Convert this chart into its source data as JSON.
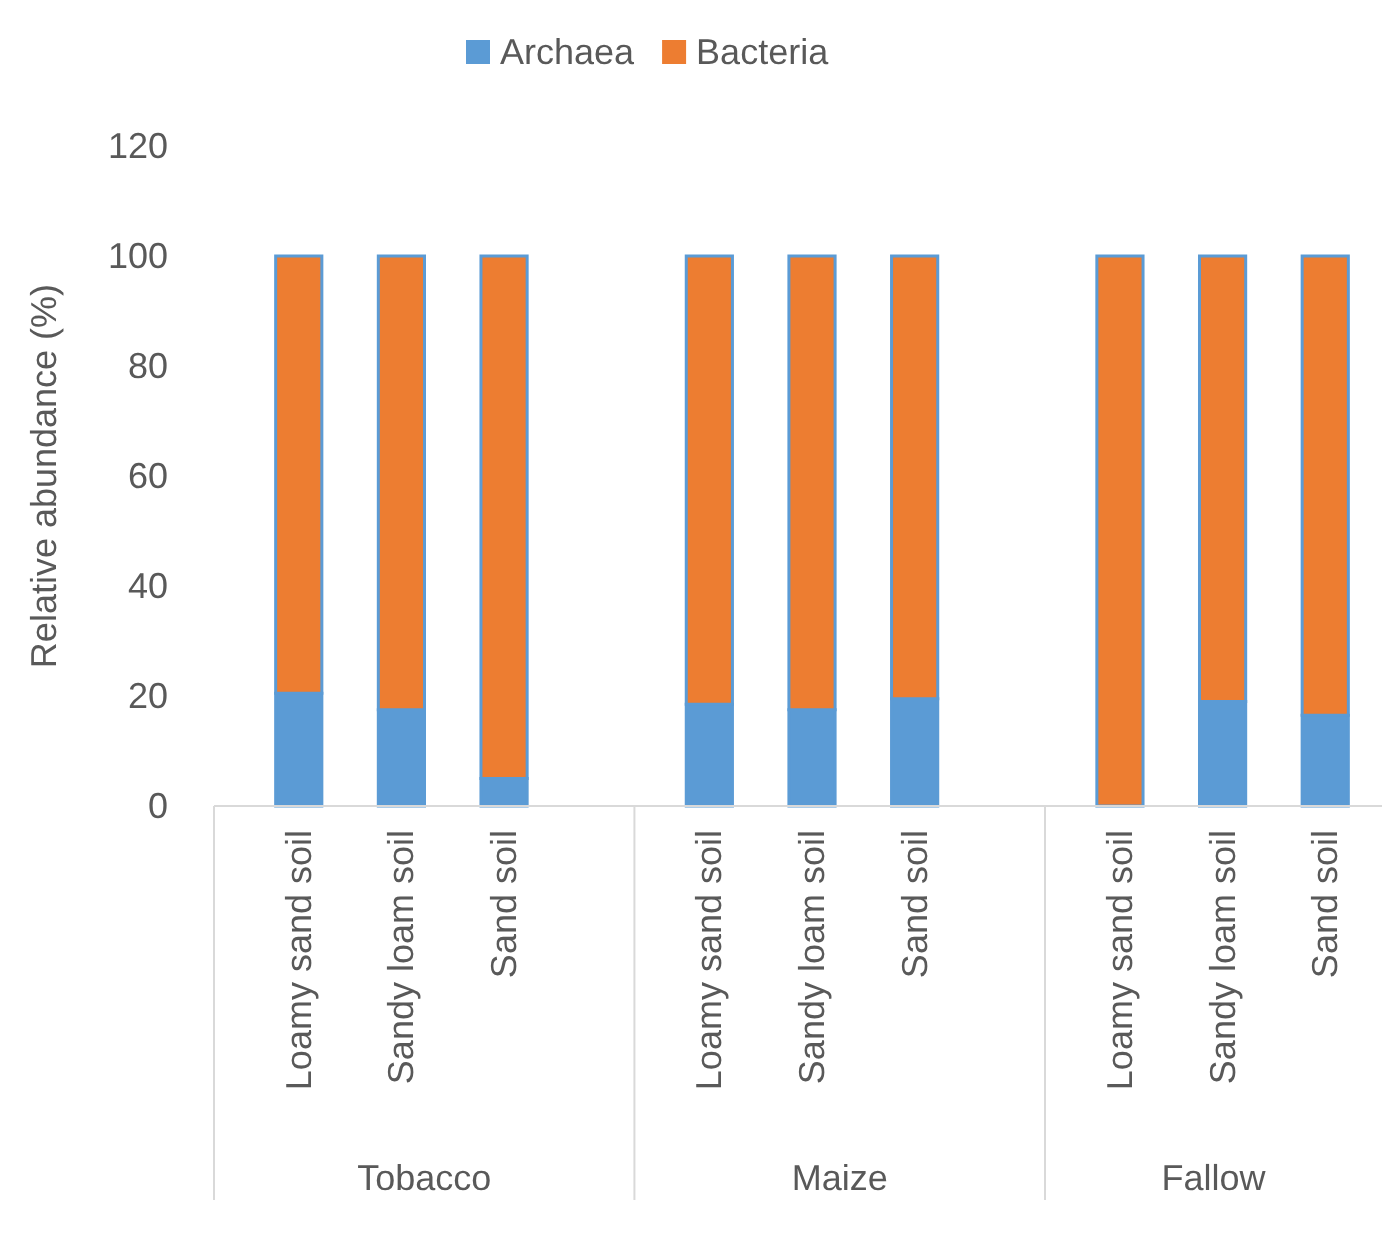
{
  "chart_data": {
    "type": "bar",
    "stacked": true,
    "ylabel": "Relative abundance (%)",
    "categories": [
      "Loamy sand soil",
      "Sandy loam soil",
      "Sand soil",
      null,
      "Loamy sand soil",
      "Sandy loam soil",
      "Sand soil",
      null,
      "Loamy sand soil",
      "Sandy loam soil",
      "Sand soil"
    ],
    "annotations": [
      "Tobacco",
      "Maize",
      "Fallow"
    ],
    "series": [
      {
        "name": "Archaea",
        "color": "#5b9bd5",
        "values": [
          20.5,
          17.5,
          5,
          null,
          18.5,
          17.5,
          19.5,
          null,
          0,
          19,
          16.5
        ]
      },
      {
        "name": "Bacteria",
        "color": "#ed7d31",
        "values": [
          79.5,
          82.5,
          95,
          null,
          81.5,
          82.5,
          80.5,
          null,
          100,
          81,
          83.5
        ]
      }
    ],
    "ylim": [
      0,
      120
    ],
    "yticks": [
      0,
      20,
      40,
      60,
      80,
      100,
      120
    ],
    "grid": false,
    "legend": "top"
  }
}
